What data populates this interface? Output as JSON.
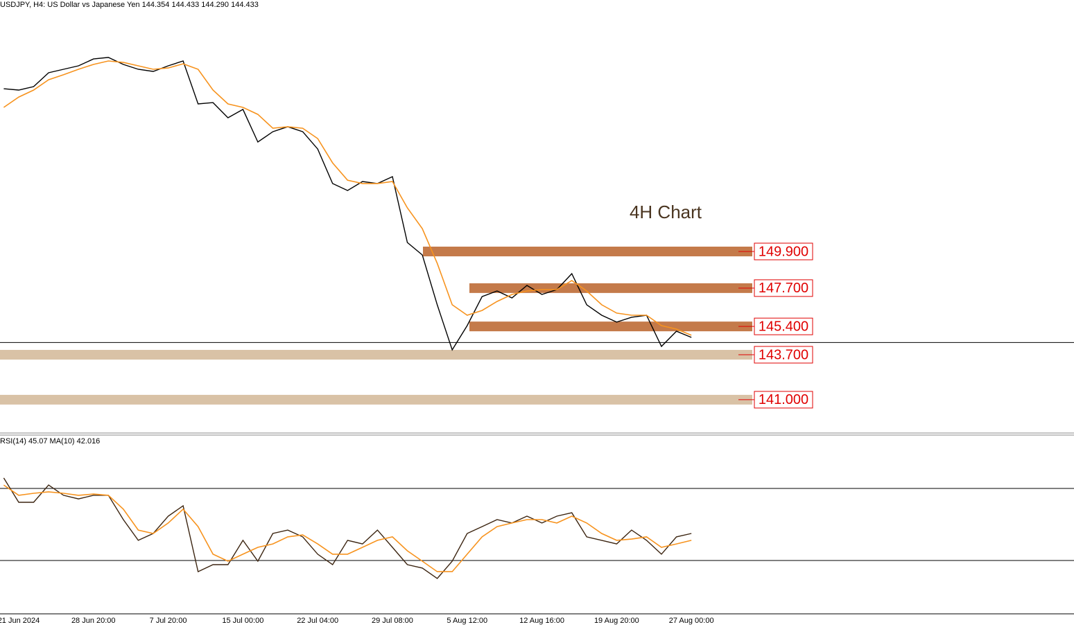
{
  "chart_data": [
    {
      "type": "line",
      "title": "USDJPY, H4:  US Dollar vs Japanese Yen  144.354 144.433 144.290 144.433",
      "annotation": "4H Chart",
      "current_price": 144.433,
      "ylim": [
        139,
        165
      ],
      "series": [
        {
          "color": "#000000",
          "values": [
            159.67,
            159.59,
            159.8,
            160.63,
            160.84,
            161.05,
            161.46,
            161.55,
            161.13,
            160.84,
            160.71,
            161.05,
            161.34,
            158.76,
            158.84,
            157.93,
            158.43,
            156.47,
            157.09,
            157.39,
            157.09,
            156.05,
            153.98,
            153.56,
            154.1,
            153.98,
            154.39,
            150.44,
            149.69,
            146.7,
            143.99,
            145.45,
            147.19,
            147.53,
            147.11,
            147.86,
            147.32,
            147.61,
            148.57,
            146.7,
            146.07,
            145.66,
            145.95,
            146.07,
            144.2,
            145.11,
            144.74
          ]
        },
        {
          "color": "#f7931e",
          "values": [
            158.55,
            159.17,
            159.59,
            160.21,
            160.51,
            160.84,
            161.13,
            161.34,
            161.25,
            161.05,
            160.84,
            160.92,
            161.17,
            160.84,
            159.59,
            158.76,
            158.55,
            158.13,
            157.3,
            157.39,
            157.3,
            156.68,
            155.22,
            154.18,
            153.98,
            153.98,
            154.1,
            152.52,
            151.27,
            149.19,
            146.7,
            146.07,
            146.36,
            146.9,
            147.32,
            147.53,
            147.61,
            147.61,
            148.15,
            147.53,
            146.7,
            146.2,
            146.07,
            146.07,
            145.45,
            145.24,
            144.87
          ]
        }
      ],
      "zones": [
        {
          "value": 149.9,
          "label": "149.900",
          "color": "#c47a4a"
        },
        {
          "value": 147.7,
          "label": "147.700",
          "color": "#c47a4a"
        },
        {
          "value": 145.4,
          "label": "145.400",
          "color": "#c47a4a"
        },
        {
          "value": 143.7,
          "label": "143.700",
          "color": "#d9c2a6"
        },
        {
          "value": 141.0,
          "label": "141.000",
          "color": "#d9c2a6"
        }
      ]
    },
    {
      "type": "line",
      "title": "RSI(14) 45.07 MA(10) 42.016",
      "ylim": [
        0,
        100
      ],
      "levels": [
        30,
        70
      ],
      "categories": [
        null,
        "21 Jun 2024",
        null,
        null,
        null,
        null,
        "28 Jun 20:00",
        null,
        null,
        null,
        null,
        "7 Jul 20:00",
        null,
        null,
        null,
        null,
        "15 Jul 00:00",
        null,
        null,
        null,
        null,
        "22 Jul 04:00",
        null,
        null,
        null,
        null,
        "29 Jul 08:00",
        null,
        null,
        null,
        null,
        "5 Aug 12:00",
        null,
        null,
        null,
        null,
        "12 Aug 16:00",
        null,
        null,
        null,
        null,
        "19 Aug 20:00",
        null,
        null,
        null,
        null,
        "27 Aug 00:00"
      ],
      "series": [
        {
          "color": "#3b2410",
          "values": [
            75.8,
            62.3,
            62.3,
            71.9,
            66.2,
            64.2,
            66.2,
            66.2,
            52.7,
            41.2,
            45,
            54.6,
            60.4,
            23.8,
            27.7,
            27.7,
            41.2,
            29.6,
            45,
            46.9,
            43.1,
            33.5,
            27.7,
            41.2,
            39.2,
            46.9,
            37.3,
            27.7,
            25.8,
            20,
            29.6,
            45,
            48.8,
            52.7,
            50.8,
            54.6,
            50.8,
            54.6,
            56.5,
            43.1,
            41.2,
            39.2,
            46.9,
            41.2,
            33.5,
            43.1,
            45
          ]
        },
        {
          "color": "#f7931e",
          "values": [
            71.9,
            66.2,
            67.3,
            68.1,
            67.3,
            66.2,
            66.9,
            66.2,
            58.5,
            46.9,
            45,
            50.8,
            58.5,
            48.8,
            33.5,
            29.6,
            33.5,
            37.3,
            39.2,
            43.1,
            44.2,
            39.2,
            33.5,
            33.5,
            37.3,
            41.2,
            43.1,
            35.4,
            29.6,
            23.8,
            23.8,
            33.5,
            43.1,
            48.8,
            50.8,
            52.7,
            52.7,
            50.8,
            54.6,
            50.8,
            45,
            41.2,
            41.9,
            43.1,
            37.3,
            39.2,
            41.2
          ]
        }
      ]
    }
  ]
}
